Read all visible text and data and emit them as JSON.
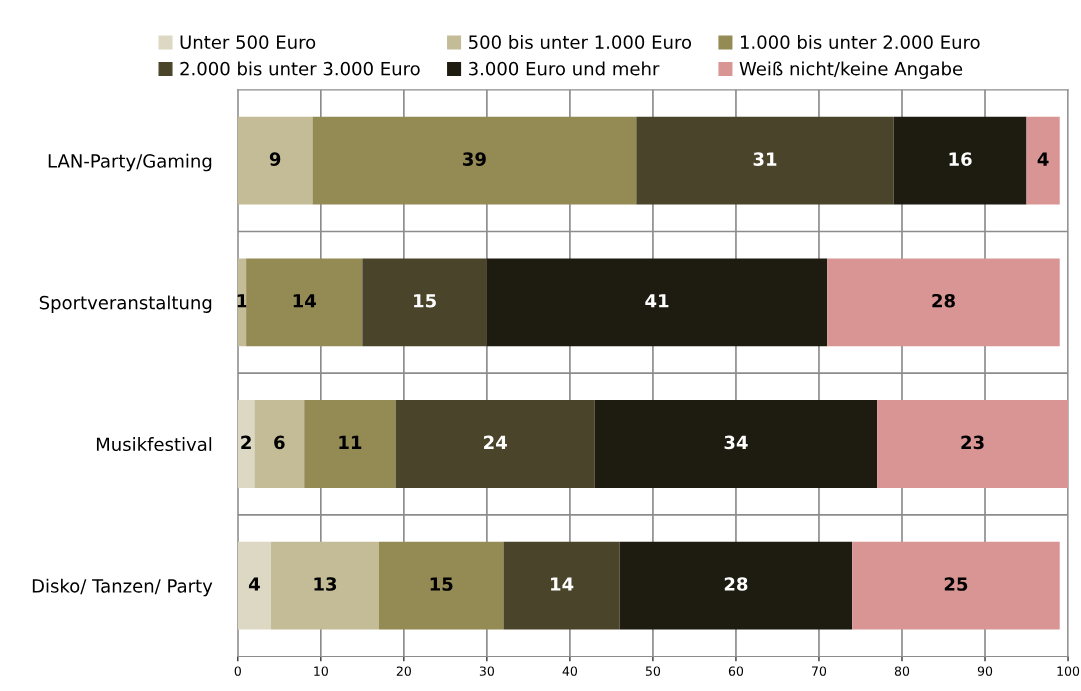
{
  "chart_data": {
    "type": "bar",
    "orientation": "horizontal",
    "stacked": true,
    "categories": [
      "LAN-Party/Gaming",
      "Sportveranstaltung",
      "Musikfestival",
      "Disko/ Tanzen/ Party"
    ],
    "series": [
      {
        "name": "Unter 500 Euro",
        "color": "#ddd8c4",
        "values": [
          null,
          null,
          2,
          4
        ]
      },
      {
        "name": "500 bis unter 1.000 Euro",
        "color": "#c4bc96",
        "values": [
          9,
          1,
          6,
          13
        ]
      },
      {
        "name": "1.000 bis unter 2.000 Euro",
        "color": "#948a54",
        "values": [
          39,
          14,
          11,
          15
        ]
      },
      {
        "name": "2.000 bis unter 3.000 Euro",
        "color": "#4a452a",
        "values": [
          31,
          15,
          24,
          14
        ]
      },
      {
        "name": "3.000 Euro und mehr",
        "color": "#1e1c11",
        "values": [
          16,
          41,
          34,
          28
        ]
      },
      {
        "name": "Weiß nicht/keine Angabe",
        "color": "#d99594",
        "values": [
          4,
          28,
          23,
          25
        ]
      }
    ],
    "xlim": [
      0,
      100
    ],
    "xticks": [
      0,
      10,
      20,
      30,
      40,
      50,
      60,
      70,
      80,
      90,
      100
    ],
    "data_labels": true,
    "grid": true,
    "legend": "top"
  }
}
